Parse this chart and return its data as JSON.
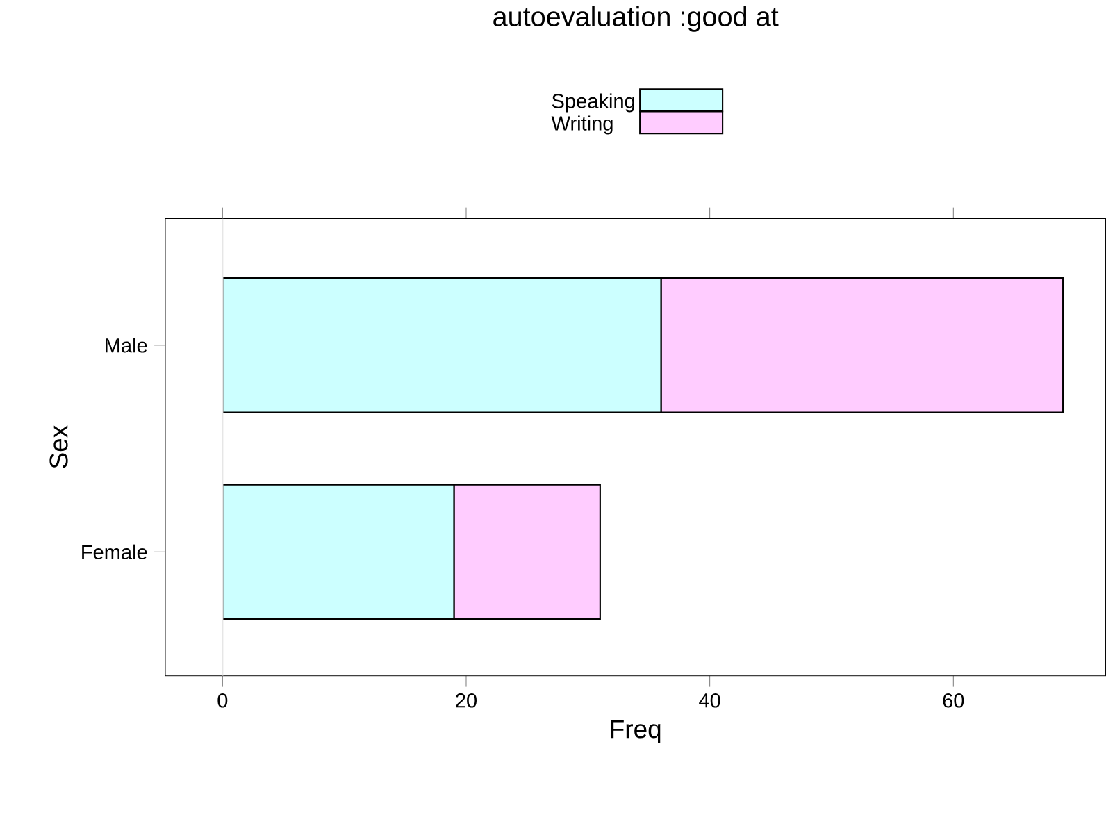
{
  "chart_data": {
    "type": "bar",
    "orientation": "horizontal",
    "stacked": true,
    "title": "autoevaluation :good at",
    "xlabel": "Freq",
    "ylabel": "Sex",
    "categories": [
      "Male",
      "Female"
    ],
    "series": [
      {
        "name": "Speaking",
        "color": "#ccffff",
        "values": [
          36,
          19
        ]
      },
      {
        "name": "Writing",
        "color": "#ffccff",
        "values": [
          33,
          12
        ]
      }
    ],
    "xlim": [
      -4.7,
      72.5
    ],
    "xticks": [
      0,
      20,
      40,
      60
    ],
    "legend": "top",
    "ref_lines": [
      {
        "axis": "x",
        "value": 0,
        "color": "#e6e6e6"
      }
    ]
  }
}
